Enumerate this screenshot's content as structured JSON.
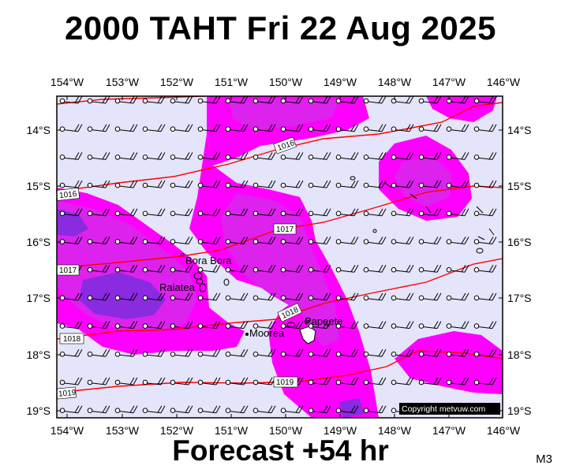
{
  "title": "2000 TAHT Fri 22 Aug 2025",
  "subtitle": "Forecast +54 hr",
  "model_code": "M3",
  "copyright": "Copyright metvuw.com",
  "colors": {
    "background": "#e4e4fb",
    "rain_light": "#ff00ff",
    "rain_medium": "#dd22ee",
    "rain_heavy": "#8a2be2",
    "isobar": "#ff0000",
    "land": "#000000"
  },
  "axes": {
    "lon_labels": [
      "154°W",
      "153°W",
      "152°W",
      "151°W",
      "150°W",
      "149°W",
      "148°W",
      "147°W",
      "146°W"
    ],
    "lat_labels": [
      "14°S",
      "15°S",
      "16°S",
      "17°S",
      "18°S",
      "19°S"
    ]
  },
  "places": [
    "Bora Bora",
    "Raiatea",
    "Moorea",
    "Papeete"
  ],
  "isobar_labels": [
    "1016",
    "1016",
    "1017",
    "1017",
    "1018",
    "1018",
    "1019",
    "1019"
  ]
}
